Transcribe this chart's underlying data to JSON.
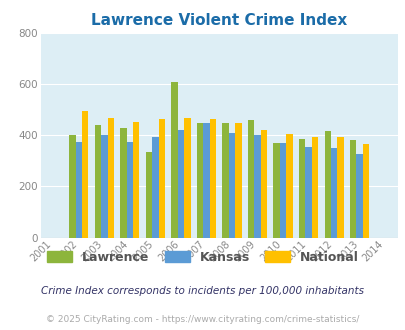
{
  "title": "Lawrence Violent Crime Index",
  "years": [
    2001,
    2002,
    2003,
    2004,
    2005,
    2006,
    2007,
    2008,
    2009,
    2010,
    2011,
    2012,
    2013,
    2014
  ],
  "lawrence": [
    null,
    400,
    440,
    430,
    335,
    608,
    448,
    448,
    460,
    370,
    385,
    415,
    380,
    null
  ],
  "kansas": [
    null,
    375,
    400,
    375,
    395,
    420,
    448,
    410,
    400,
    370,
    355,
    352,
    325,
    null
  ],
  "national": [
    null,
    495,
    468,
    452,
    465,
    468,
    465,
    448,
    420,
    405,
    395,
    392,
    365,
    null
  ],
  "bar_colors": {
    "lawrence": "#8db53c",
    "kansas": "#5b9bd5",
    "national": "#ffc000"
  },
  "ylim": [
    0,
    800
  ],
  "yticks": [
    0,
    200,
    400,
    600,
    800
  ],
  "plot_bg": "#ddeef5",
  "legend_labels": [
    "Lawrence",
    "Kansas",
    "National"
  ],
  "footnote1": "Crime Index corresponds to incidents per 100,000 inhabitants",
  "footnote2": "© 2025 CityRating.com - https://www.cityrating.com/crime-statistics/",
  "title_color": "#1b6ca8",
  "footnote1_color": "#333366",
  "footnote2_color": "#aaaaaa",
  "url_color": "#4499cc",
  "bar_width": 0.25
}
